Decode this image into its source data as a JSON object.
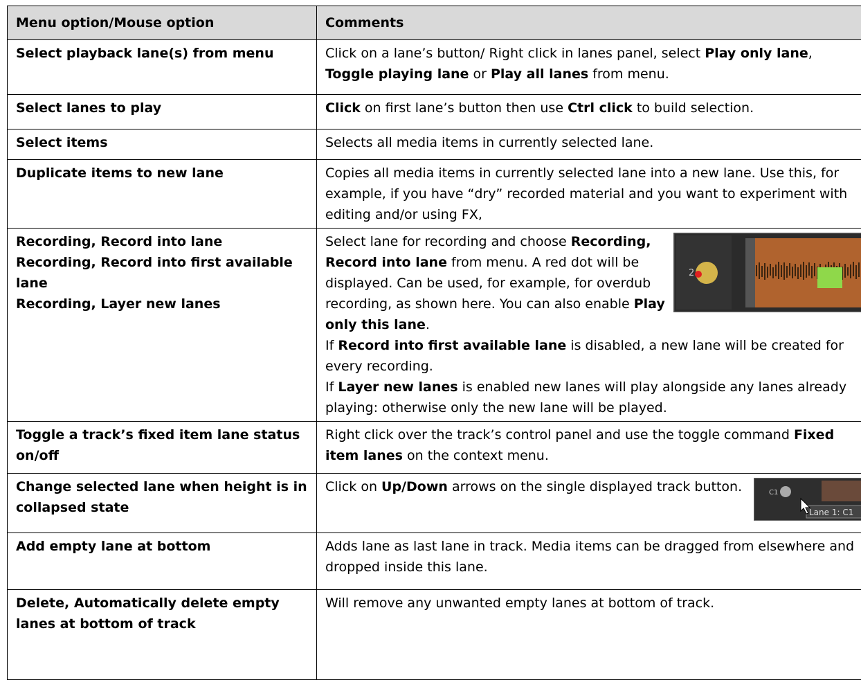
{
  "table": {
    "header": [
      "Menu option/Mouse option",
      "Comments"
    ],
    "rows": [
      {
        "option": [
          [
            {
              "text": "Select playback lane(s) from menu",
              "bold": true
            }
          ]
        ],
        "comment": [
          [
            {
              "text": "Click on a lane’s button/ Right click in lanes panel, select "
            },
            {
              "text": "Play only lane",
              "bold": true
            },
            {
              "text": ", "
            },
            {
              "text": "Toggle playing lane",
              "bold": true
            },
            {
              "text": " or "
            },
            {
              "text": "Play all lanes",
              "bold": true
            },
            {
              "text": " from menu."
            }
          ]
        ]
      },
      {
        "option": [
          [
            {
              "text": "Select lanes to play",
              "bold": true
            }
          ]
        ],
        "comment": [
          [
            {
              "text": "Click",
              "bold": true
            },
            {
              "text": " on first lane’s button then use "
            },
            {
              "text": "Ctrl click",
              "bold": true
            },
            {
              "text": " to build selection."
            }
          ]
        ]
      },
      {
        "option": [
          [
            {
              "text": "Select items",
              "bold": true
            }
          ]
        ],
        "comment": [
          [
            {
              "text": "Selects all media items in currently selected lane."
            }
          ]
        ]
      },
      {
        "option": [
          [
            {
              "text": "Duplicate items to new lane",
              "bold": true
            }
          ]
        ],
        "comment": [
          [
            {
              "text": "Copies all media items in currently selected lane into a new lane. Use this, for example, if you have “dry” recorded material and you want to experiment with editing and/or using FX,"
            }
          ]
        ]
      },
      {
        "option": [
          [
            {
              "text": "Recording, Record into lane",
              "bold": true
            }
          ],
          [
            {
              "text": "Recording, Record into first available lane",
              "bold": true
            }
          ],
          [
            {
              "text": "Recording, Layer new lanes",
              "bold": true
            }
          ]
        ],
        "comment": [
          [
            {
              "text": "Select lane for recording and choose "
            },
            {
              "text": "Recording, Record into lane",
              "bold": true
            },
            {
              "text": " from menu. A red dot will be displayed. Can be used, for example, for overdub recording, as shown here. You can also enable "
            },
            {
              "text": "Play only this lane",
              "bold": true
            },
            {
              "text": "."
            }
          ],
          [
            {
              "text": "If "
            },
            {
              "text": "Record into first available lane",
              "bold": true
            },
            {
              "text": " is disabled, a new lane will be created for every recording."
            }
          ],
          [
            {
              "text": "If "
            },
            {
              "text": "Layer new lanes",
              "bold": true
            },
            {
              "text": " is enabled new lanes will play alongside any lanes already playing: otherwise only the new lane will be played."
            }
          ]
        ],
        "figure": {
          "kind": "recording",
          "labels": [
            "2"
          ]
        }
      },
      {
        "option": [
          [
            {
              "text": "Toggle a track’s fixed item lane status on/off",
              "bold": true
            }
          ]
        ],
        "comment": [
          [
            {
              "text": "Right click over the track’s control panel and use the toggle command "
            },
            {
              "text": "Fixed item lanes",
              "bold": true
            },
            {
              "text": " on the context menu."
            }
          ]
        ]
      },
      {
        "option": [
          [
            {
              "text": "Change selected lane when height is in collapsed state",
              "bold": true
            }
          ]
        ],
        "comment": [
          [
            {
              "text": "Click on "
            },
            {
              "text": "Up/Down",
              "bold": true
            },
            {
              "text": " arrows on the single displayed track button."
            }
          ]
        ],
        "figure": {
          "kind": "collapsed",
          "labels": [
            "C1",
            "Lane 1: C1"
          ]
        }
      },
      {
        "option": [
          [
            {
              "text": "Add empty lane at bottom",
              "bold": true
            }
          ]
        ],
        "comment": [
          [
            {
              "text": "Adds lane as last lane in track. Media items can be dragged from elsewhere and dropped inside this lane."
            }
          ]
        ]
      },
      {
        "option": [
          [
            {
              "text": "Delete, Automatically delete empty lanes at bottom of track",
              "bold": true
            }
          ]
        ],
        "comment": [
          [
            {
              "text": "Will remove any unwanted empty lanes at bottom of track."
            }
          ]
        ]
      }
    ]
  }
}
